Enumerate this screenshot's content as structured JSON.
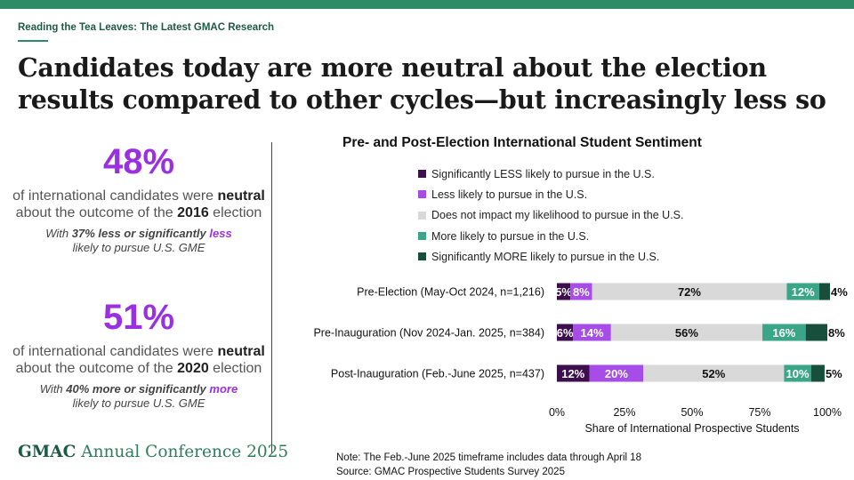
{
  "kicker": "Reading the Tea Leaves: The Latest GMAC Research",
  "headline": "Candidates today are more neutral about the election results compared to other cycles—but increasingly less so",
  "stats": [
    {
      "value": "48%",
      "desc_pre": "of international candidates were ",
      "desc_bold": "neutral",
      "desc_mid": " about the outcome of the ",
      "year": "2016",
      "desc_post": " election",
      "note_pre": "With ",
      "note_bold": "37% less or significantly",
      "note_hl": "less",
      "note_post": "likely to pursue U.S. GME"
    },
    {
      "value": "51%",
      "desc_pre": "of international candidates were ",
      "desc_bold": "neutral",
      "desc_mid": " about the outcome of the ",
      "year": "2020",
      "desc_post": " election",
      "note_pre": "With ",
      "note_bold": "40% more or significantly",
      "note_hl": "more",
      "note_post": "likely to pursue U.S. GME"
    }
  ],
  "footer": {
    "brand_bold": "GMAC",
    "brand_rest": "Annual Conference 2025"
  },
  "note": {
    "line1": "Note: The Feb.-June 2025 timeframe includes data through April 18",
    "line2": "Source: GMAC Prospective Students Survey 2025"
  },
  "chart_data": {
    "type": "bar",
    "orientation": "horizontal",
    "stacked": true,
    "title": "Pre- and Post-Election International Student Sentiment",
    "xlabel": "Share of International Prospective Students",
    "xlim": [
      0,
      100
    ],
    "x_ticks": [
      "0%",
      "25%",
      "50%",
      "75%",
      "100%"
    ],
    "legend_position": "top",
    "categories": [
      "Pre-Election (May-Oct 2024, n=1,216)",
      "Pre-Inauguration (Nov 2024-Jan. 2025, n=384)",
      "Post-Inauguration (Feb.-June 2025, n=437)"
    ],
    "series": [
      {
        "name": "Significantly LESS likely to pursue in the U.S.",
        "color": "#3d0f4d",
        "label_color": "#ffffff",
        "values": [
          5,
          6,
          12
        ]
      },
      {
        "name": "Less likely to pursue in the U.S.",
        "color": "#a64de8",
        "label_color": "#ffffff",
        "values": [
          8,
          14,
          20
        ]
      },
      {
        "name": "Does not impact my likelihood to pursue in the U.S.",
        "color": "#d9d9d9",
        "label_color": "#111111",
        "values": [
          72,
          56,
          52
        ]
      },
      {
        "name": "More likely to pursue in the U.S.",
        "color": "#3aa687",
        "label_color": "#ffffff",
        "values": [
          12,
          16,
          10
        ]
      },
      {
        "name": "Significantly MORE likely to pursue in the U.S.",
        "color": "#174f3c",
        "label_color": "#111111",
        "values": [
          4,
          8,
          5
        ]
      }
    ]
  }
}
